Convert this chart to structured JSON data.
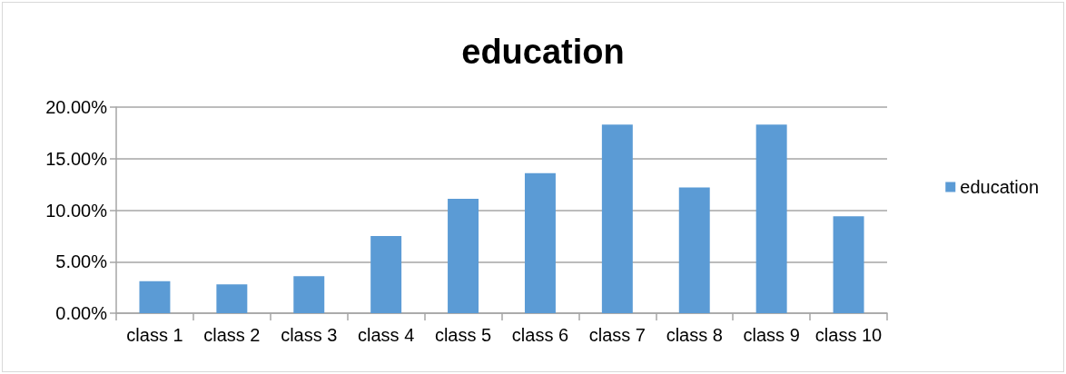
{
  "chart_data": {
    "type": "bar",
    "title": "education",
    "categories": [
      "class 1",
      "class 2",
      "class 3",
      "class 4",
      "class 5",
      "class 6",
      "class 7",
      "class 8",
      "class 9",
      "class 10"
    ],
    "series": [
      {
        "name": "education",
        "color": "#5b9bd5",
        "values": [
          3.1,
          2.8,
          3.6,
          7.5,
          11.1,
          13.6,
          18.3,
          12.2,
          18.3,
          9.4
        ]
      }
    ],
    "ylim": [
      0,
      20
    ],
    "yticks": [
      {
        "value": 0,
        "label": "0.00%"
      },
      {
        "value": 5,
        "label": "5.00%"
      },
      {
        "value": 10,
        "label": "10.00%"
      },
      {
        "value": 15,
        "label": "15.00%"
      },
      {
        "value": 20,
        "label": "20.00%"
      }
    ],
    "grid": "y",
    "legend": "right"
  }
}
